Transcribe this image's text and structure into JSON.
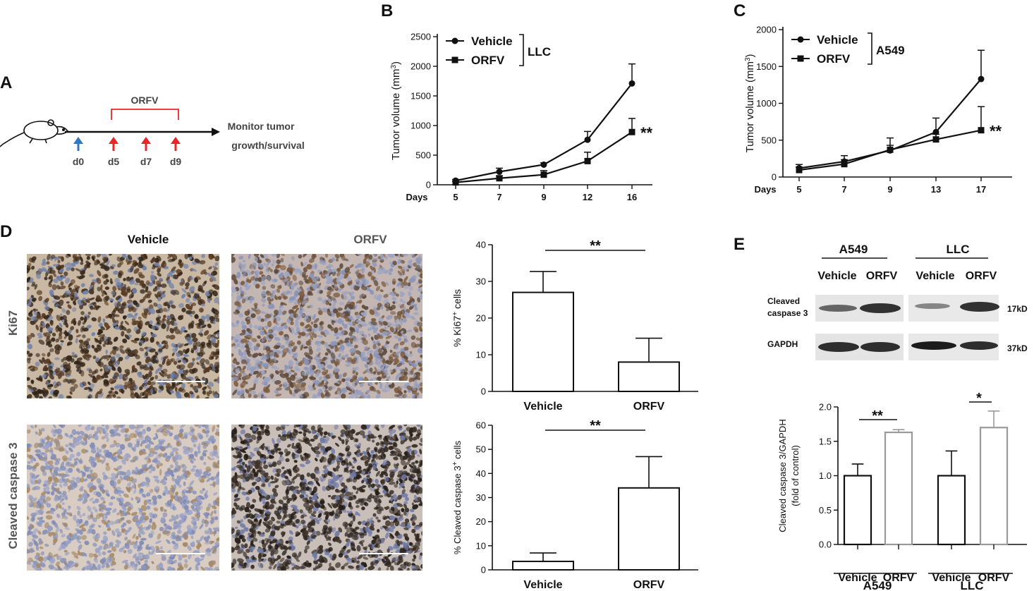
{
  "panels": {
    "a": "A",
    "b": "B",
    "c": "C",
    "d": "D",
    "e": "E"
  },
  "panel_a": {
    "treatment": "ORFV",
    "days": [
      "d0",
      "d5",
      "d7",
      "d9"
    ],
    "outcome_line1": "Monitor tumor",
    "outcome_line2": "growth/survival",
    "colors": {
      "d0_arrow": "#2f78c8",
      "treatment_arrow": "#e8262a",
      "bracket": "#e8262a"
    }
  },
  "panel_d": {
    "col_vehicle": "Vehicle",
    "col_orfv": "ORFV",
    "row_ki67": "Ki67",
    "row_caspase": "Cleaved caspase 3"
  },
  "panel_e": {
    "blot_groups": [
      "A549",
      "LLC"
    ],
    "blot_lanes": [
      "Vehicle",
      "ORFV",
      "Vehicle",
      "ORFV"
    ],
    "band_labels": [
      "Cleaved\ncaspase 3",
      "GAPDH"
    ],
    "band_label_caspase_1": "Cleaved",
    "band_label_caspase_2": "caspase 3",
    "band_label_gapdh": "GAPDH",
    "mw_caspase": "17kD",
    "mw_gapdh": "37kD"
  },
  "chart_data": [
    {
      "id": "B",
      "type": "line",
      "xlabel": "Days",
      "ylabel": "Tumor volume (mm3)",
      "x": [
        5,
        7,
        9,
        12,
        16
      ],
      "ylim": [
        0,
        2500
      ],
      "yticks": [
        0,
        500,
        1000,
        1500,
        2000,
        2500
      ],
      "legend_group": "LLC",
      "series": [
        {
          "name": "Vehicle",
          "marker": "circle",
          "values": [
            70,
            220,
            340,
            760,
            1710
          ],
          "errors": [
            20,
            60,
            30,
            140,
            330
          ]
        },
        {
          "name": "ORFV",
          "marker": "square",
          "values": [
            40,
            110,
            170,
            400,
            890
          ],
          "errors": [
            15,
            40,
            70,
            150,
            230
          ]
        }
      ],
      "annotation": "**"
    },
    {
      "id": "C",
      "type": "line",
      "xlabel": "Days",
      "ylabel": "Tumor volume (mm3)",
      "x": [
        5,
        7,
        9,
        13,
        17
      ],
      "ylim": [
        0,
        2000
      ],
      "yticks": [
        0,
        500,
        1000,
        1500,
        2000
      ],
      "legend_group": "A549",
      "series": [
        {
          "name": "Vehicle",
          "marker": "circle",
          "values": [
            120,
            210,
            360,
            610,
            1330
          ],
          "errors": [
            50,
            80,
            170,
            190,
            390
          ]
        },
        {
          "name": "ORFV",
          "marker": "square",
          "values": [
            95,
            175,
            370,
            510,
            635
          ],
          "errors": [
            40,
            60,
            60,
            70,
            320
          ]
        }
      ],
      "annotation": "**"
    },
    {
      "id": "D-top",
      "type": "bar",
      "categories": [
        "Vehicle",
        "ORFV"
      ],
      "values": [
        27,
        8
      ],
      "errors": [
        5.7,
        6.5
      ],
      "ylabel": "% Ki67+ cells",
      "ylim": [
        0,
        40
      ],
      "yticks": [
        0,
        10,
        20,
        30,
        40
      ],
      "significance": "**"
    },
    {
      "id": "D-bottom",
      "type": "bar",
      "categories": [
        "Vehicle",
        "ORFV"
      ],
      "values": [
        3.5,
        34
      ],
      "errors": [
        3.5,
        13
      ],
      "ylabel": "% Cleaved caspase 3+ cells",
      "ylim": [
        0,
        60
      ],
      "yticks": [
        0,
        10,
        20,
        30,
        40,
        50,
        60
      ],
      "significance": "**"
    },
    {
      "id": "E",
      "type": "bar",
      "groups": [
        "A549",
        "LLC"
      ],
      "categories": [
        "Vehicle",
        "ORFV",
        "Vehicle",
        "ORFV"
      ],
      "values": [
        1.0,
        1.63,
        1.0,
        1.7
      ],
      "errors": [
        0.17,
        0.04,
        0.36,
        0.24
      ],
      "ylabel": "Cleaved caspase 3/GAPDH (fold of control)",
      "ylim": [
        0,
        2.0
      ],
      "yticks": [
        0.0,
        0.5,
        1.0,
        1.5,
        2.0
      ],
      "significance": [
        "**",
        "*"
      ],
      "colors": {
        "vehicle": "#111111",
        "orfv": "#9a9a9a"
      }
    }
  ]
}
